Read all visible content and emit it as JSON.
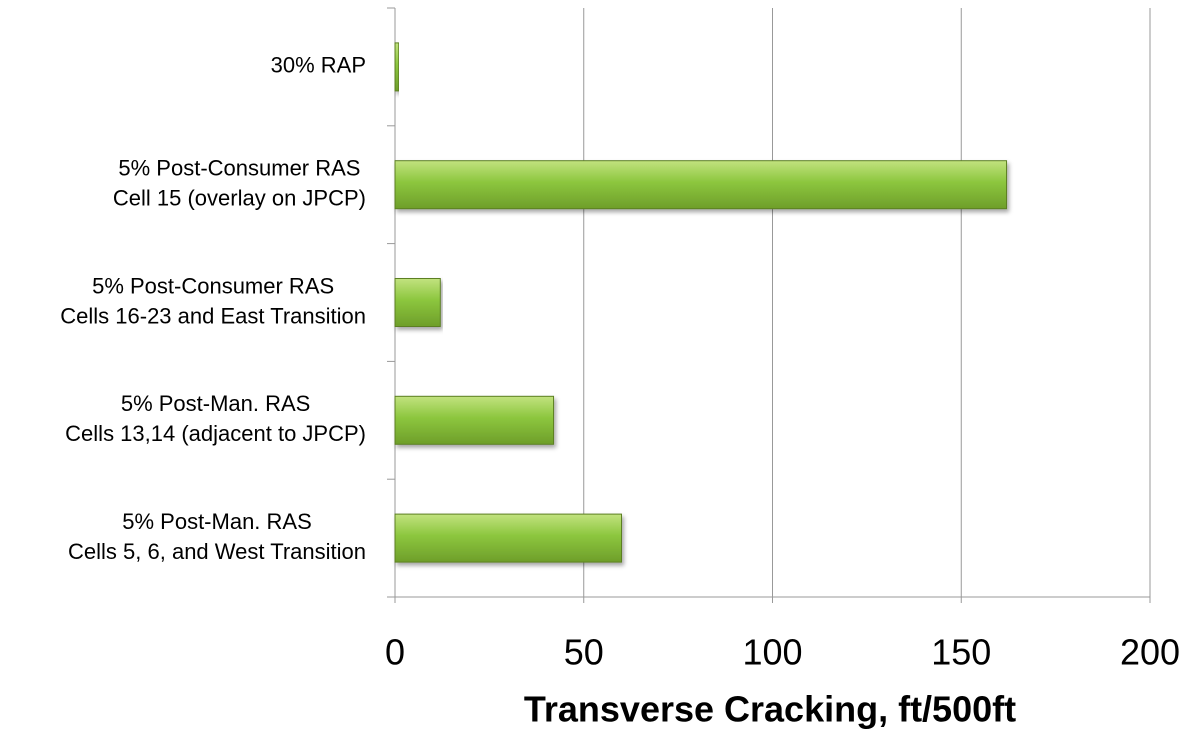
{
  "chart_data": {
    "type": "barh",
    "categories": [
      [
        "30% RAP"
      ],
      [
        "5% Post-Consumer RAS",
        "Cell 15 (overlay on JPCP)"
      ],
      [
        "5% Post-Consumer RAS",
        "Cells 16-23 and East Transition"
      ],
      [
        "5% Post-Man. RAS",
        "Cells 13,14 (adjacent to JPCP)"
      ],
      [
        "5% Post-Man. RAS",
        "Cells 5, 6, and West Transition"
      ]
    ],
    "values": [
      1,
      162,
      12,
      42,
      60
    ],
    "color": "#8cc63e",
    "xlabel": "Transverse Cracking, ft/500ft",
    "xlim": [
      0,
      200
    ],
    "xticks": [
      0,
      50,
      100,
      150,
      200
    ],
    "grid": true
  }
}
